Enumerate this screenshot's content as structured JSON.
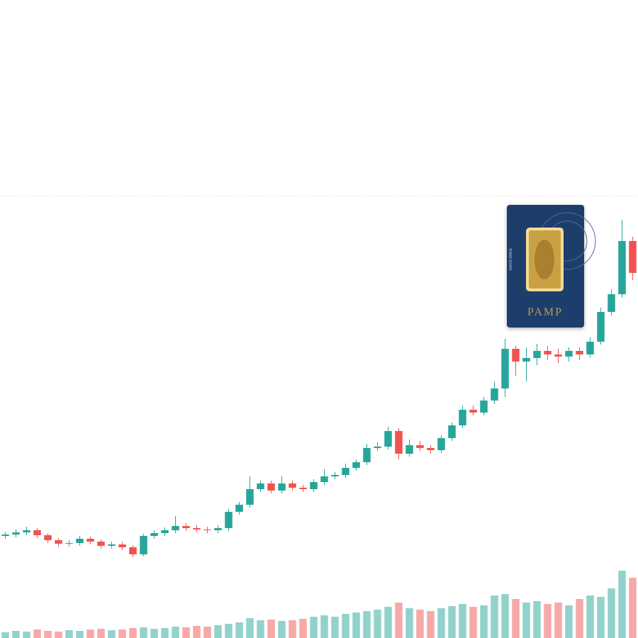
{
  "chart_data": {
    "type": "candlestick",
    "ylim": [
      0,
      900
    ],
    "y2lim": [
      0,
      900
    ],
    "gridlines": [
      623
    ],
    "up_color": "#26a69a",
    "down_color": "#ef5350",
    "open": [
      144,
      146,
      149,
      152,
      145,
      138,
      133,
      134,
      140,
      136,
      130,
      132,
      128,
      118,
      144,
      148,
      152,
      158,
      155,
      153,
      152,
      155,
      178,
      188,
      210,
      218,
      208,
      218,
      212,
      210,
      220,
      228,
      230,
      240,
      248,
      268,
      270,
      292,
      260,
      272,
      268,
      265,
      282,
      300,
      322,
      318,
      335,
      352,
      408,
      390,
      395,
      405,
      400,
      397,
      405,
      400,
      418,
      460,
      485,
      560
    ],
    "high": [
      150,
      153,
      157,
      155,
      148,
      141,
      138,
      144,
      143,
      139,
      136,
      136,
      131,
      147,
      152,
      156,
      172,
      162,
      159,
      157,
      159,
      182,
      192,
      228,
      222,
      222,
      228,
      222,
      216,
      224,
      238,
      234,
      246,
      252,
      274,
      276,
      298,
      296,
      280,
      278,
      272,
      286,
      304,
      328,
      328,
      340,
      362,
      422,
      412,
      410,
      415,
      412,
      408,
      410,
      410,
      424,
      466,
      492,
      590,
      566
    ],
    "low": [
      140,
      142,
      145,
      141,
      134,
      129,
      129,
      130,
      132,
      126,
      126,
      124,
      114,
      115,
      140,
      144,
      148,
      151,
      149,
      148,
      148,
      151,
      174,
      184,
      206,
      204,
      204,
      208,
      206,
      206,
      216,
      224,
      226,
      236,
      244,
      264,
      266,
      252,
      256,
      264,
      260,
      261,
      278,
      296,
      314,
      314,
      330,
      340,
      370,
      362,
      385,
      392,
      388,
      390,
      392,
      396,
      414,
      455,
      480,
      505
    ],
    "close": [
      146,
      149,
      152,
      145,
      138,
      133,
      134,
      140,
      136,
      130,
      132,
      128,
      118,
      144,
      148,
      152,
      158,
      155,
      153,
      152,
      155,
      178,
      188,
      210,
      218,
      208,
      218,
      212,
      210,
      220,
      228,
      230,
      240,
      248,
      268,
      270,
      292,
      260,
      272,
      268,
      265,
      282,
      300,
      322,
      318,
      335,
      352,
      408,
      390,
      395,
      405,
      400,
      397,
      405,
      400,
      418,
      460,
      485,
      560,
      515
    ],
    "volume": [
      8,
      10,
      9,
      12,
      10,
      9,
      11,
      10,
      12,
      13,
      11,
      12,
      14,
      15,
      13,
      14,
      16,
      15,
      17,
      16,
      18,
      20,
      22,
      28,
      25,
      26,
      24,
      25,
      27,
      30,
      32,
      30,
      34,
      36,
      38,
      40,
      44,
      50,
      42,
      40,
      38,
      42,
      45,
      48,
      44,
      46,
      60,
      62,
      55,
      50,
      52,
      48,
      50,
      46,
      55,
      60,
      58,
      70,
      95,
      85
    ],
    "image_text": {
      "origin": "SWISS MADE",
      "brand": "PAMP"
    }
  }
}
